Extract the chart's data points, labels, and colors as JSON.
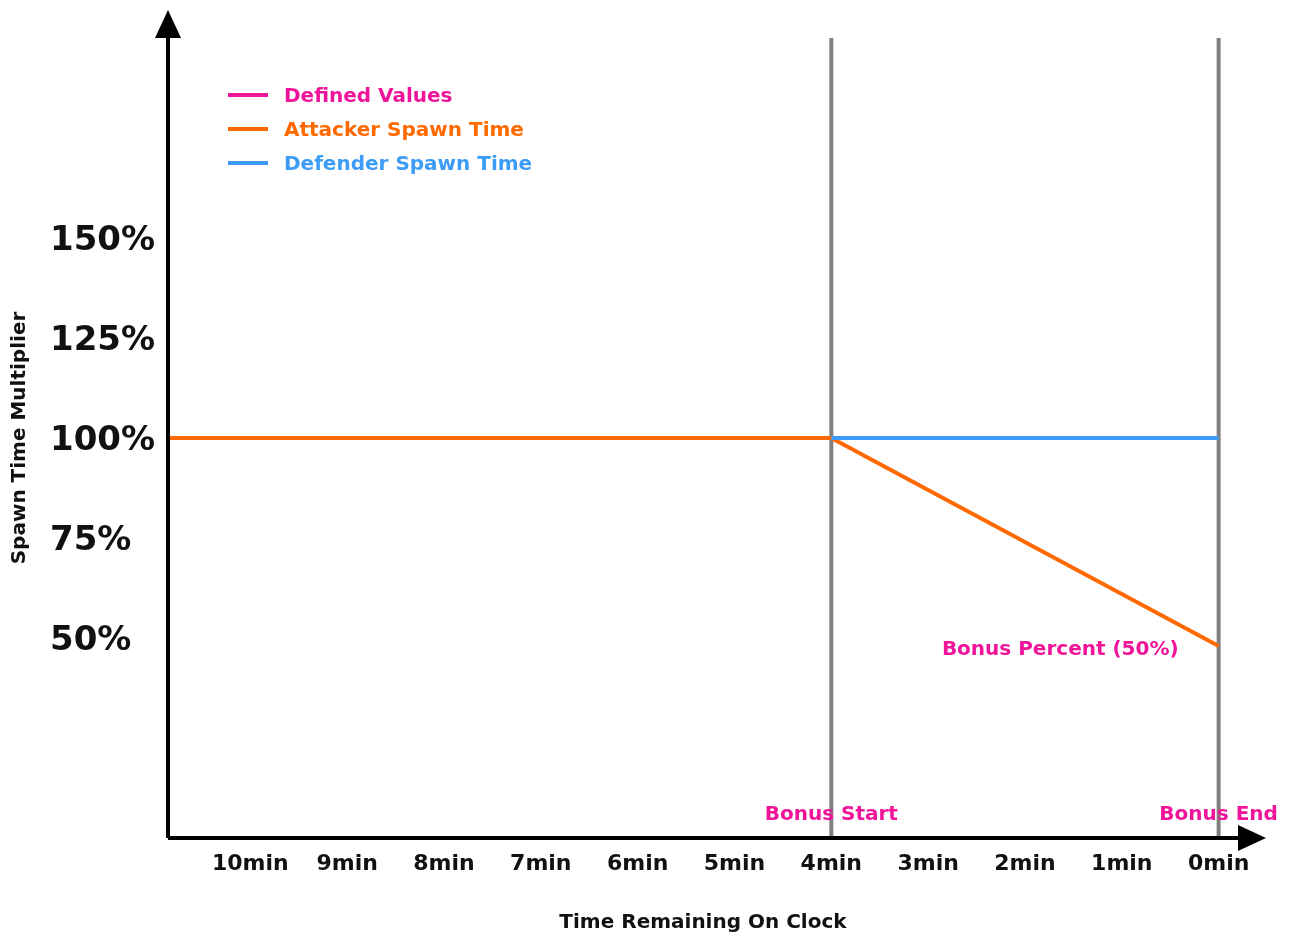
{
  "chart_data": {
    "type": "line",
    "xlabel": "Time Remaining On Clock",
    "ylabel": "Spawn Time Multiplier",
    "xlim": [
      10.85,
      -0.2
    ],
    "xticks": [
      {
        "value": 10,
        "label": "10min"
      },
      {
        "value": 9,
        "label": "9min"
      },
      {
        "value": 8,
        "label": "8min"
      },
      {
        "value": 7,
        "label": "7min"
      },
      {
        "value": 6,
        "label": "6min"
      },
      {
        "value": 5,
        "label": "5min"
      },
      {
        "value": 4,
        "label": "4min"
      },
      {
        "value": 3,
        "label": "3min"
      },
      {
        "value": 2,
        "label": "2min"
      },
      {
        "value": 1,
        "label": "1min"
      },
      {
        "value": 0,
        "label": "0min"
      }
    ],
    "ylim": [
      0,
      200
    ],
    "yticks": [
      {
        "value": 50,
        "label": "50%"
      },
      {
        "value": 75,
        "label": "75%"
      },
      {
        "value": 100,
        "label": "100%"
      },
      {
        "value": 125,
        "label": "125%"
      },
      {
        "value": 150,
        "label": "150%"
      }
    ],
    "series": [
      {
        "name": "Defined Values",
        "color": "#f0149b"
      },
      {
        "name": "Attacker Spawn Time",
        "color": "#ff6a00",
        "x": [
          10.85,
          4,
          0
        ],
        "values": [
          100,
          100,
          48
        ]
      },
      {
        "name": "Defender Spawn Time",
        "color": "#3d9cf5",
        "x": [
          4,
          0
        ],
        "values": [
          100,
          100
        ]
      }
    ],
    "ref_lines": [
      {
        "axis": "x",
        "value": 4,
        "label": "Bonus Start",
        "color": "#808080"
      },
      {
        "axis": "x",
        "value": 0,
        "label": "Bonus End",
        "color": "#808080"
      }
    ],
    "annotations": [
      {
        "text": "Bonus Percent (50%)",
        "x": 0,
        "y": 48
      }
    ],
    "legend": "top left",
    "grid": false,
    "marker": "none",
    "line_style": "solid"
  }
}
